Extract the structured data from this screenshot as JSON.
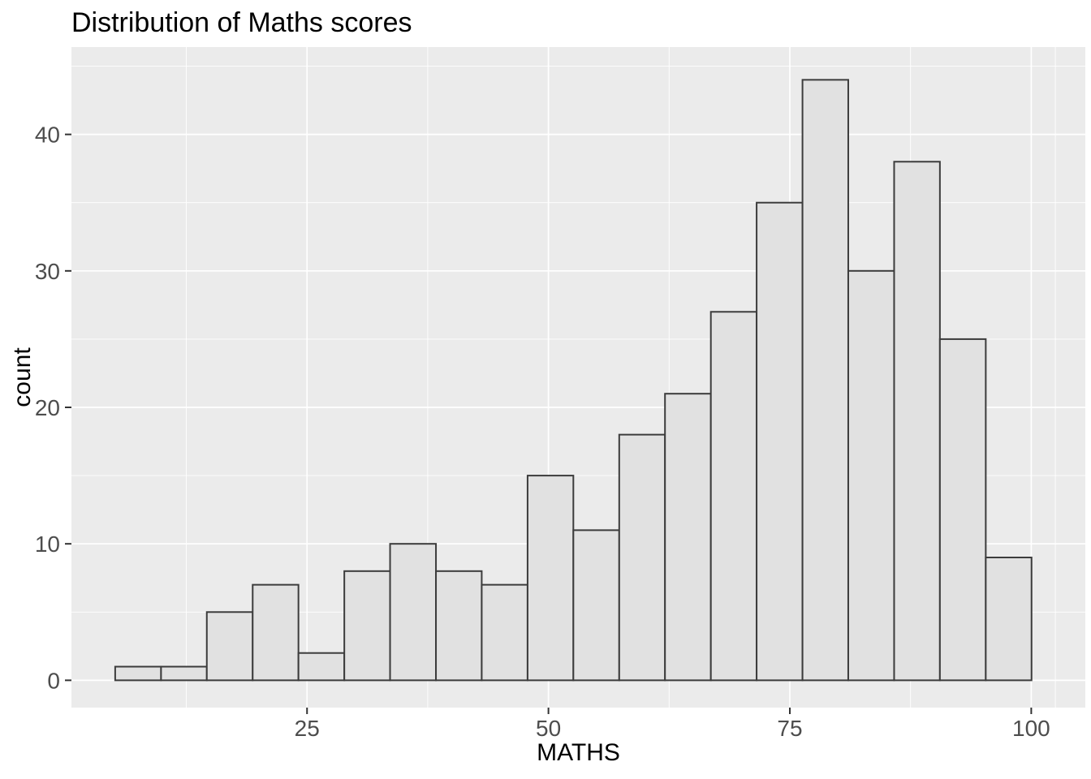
{
  "chart_data": {
    "type": "bar",
    "variant": "histogram",
    "title": "Distribution of Maths scores",
    "xlabel": "MATHS",
    "ylabel": "count",
    "bin_edges": [
      5.13,
      9.88,
      14.62,
      19.37,
      24.11,
      28.86,
      33.6,
      38.35,
      43.09,
      47.84,
      52.58,
      57.33,
      62.07,
      66.82,
      71.56,
      76.31,
      81.05,
      85.8,
      90.54,
      95.29,
      100.03
    ],
    "counts": [
      1,
      1,
      5,
      7,
      2,
      8,
      10,
      8,
      7,
      15,
      11,
      18,
      21,
      27,
      35,
      44,
      30,
      38,
      25,
      9
    ],
    "x_ticks": [
      25,
      50,
      75,
      100
    ],
    "y_ticks": [
      0,
      10,
      20,
      30,
      40
    ],
    "x_minor_gridlines": [
      12.5,
      37.5,
      62.5,
      87.5,
      102.5
    ],
    "y_minor_gridlines": [
      5,
      15,
      25,
      35,
      45
    ],
    "xlim": [
      0.6,
      105.6
    ],
    "ylim": [
      -2.0,
      46.4
    ],
    "grid": "major-and-minor",
    "legend_position": "none",
    "style": {
      "figure_bg": "#FFFFFF",
      "panel_bg": "#EBEBEB",
      "grid_color": "#FFFFFF",
      "bar_fill": "#E1E1E1",
      "bar_stroke": "#3C3C3C",
      "tick_mark_color": "#333333",
      "tick_label_color": "#4D4D4D",
      "text_color": "#000000"
    }
  }
}
